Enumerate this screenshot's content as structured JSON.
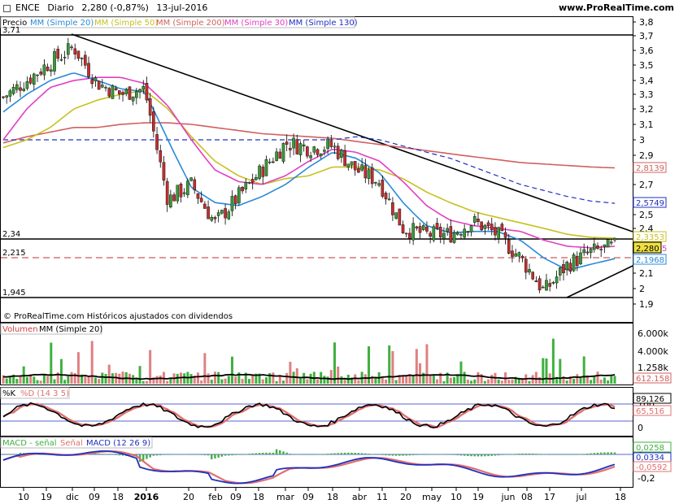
{
  "header": {
    "symbol": "ENCE",
    "period": "Diario",
    "quote": "2,280 (-0,87%)",
    "date": "13-jul-2016",
    "site": "www.ProRealTime.com"
  },
  "footer_note": "© ProRealTime.com  Históricos ajustados con dividendos",
  "colors": {
    "sma20": "#2a8ad8",
    "sma50": "#c8c020",
    "sma200": "#d06060",
    "sma30": "#e040c0",
    "sma130": "#2030c0",
    "up": "#3a9a3a",
    "down": "#c03030",
    "volume": "#e08080",
    "k": "#000000",
    "d": "#e07070",
    "macd": "#2030c0",
    "signal": "#e07070",
    "hist": "#40b040"
  },
  "price_panel": {
    "legend": [
      "Precio",
      "MM (Simple 20)",
      "MM (Simple 50)",
      "MM (Simple 200)",
      "MM (Simple 30)",
      "MM (Simple 130)"
    ],
    "y_ticks": [
      "3,8",
      "3,7",
      "3,6",
      "3,5",
      "3,4",
      "3,3",
      "3,2",
      "3,1",
      "3",
      "2,9",
      "2,7",
      "2,5",
      "2,4",
      "2,1",
      "2",
      "1,9"
    ],
    "levels": [
      "3,71",
      "2,34",
      "2,215",
      "1,945"
    ],
    "tags": {
      "sma200": "2,8139",
      "sma130": "2,5749",
      "sma50": "2,3353",
      "price": "2,280",
      "sma20": "2,1968",
      "sma30": "5"
    }
  },
  "volume_panel": {
    "legend": [
      "Volumen",
      "MM (Simple 20)"
    ],
    "y_ticks": [
      "6.000k",
      "4.000k",
      "1.258k"
    ],
    "last": "612.158"
  },
  "stoch_panel": {
    "legend": [
      "%K",
      "%D (14 3 5)"
    ],
    "y_ticks": [
      "100",
      "0"
    ],
    "k_last": "89,126",
    "d_last": "65,516"
  },
  "macd_panel": {
    "legend": [
      "MACD - señal",
      "Señal",
      "MACD (12 26 9)"
    ],
    "y_ticks": [
      "0",
      "-0,2"
    ],
    "hist_last": "0,0258",
    "macd_last": "0,0334",
    "signal_last": "-0,0592"
  },
  "x_ticks": [
    "10",
    "19",
    "dic",
    "09",
    "18",
    "2016",
    "20",
    "feb",
    "09",
    "18",
    "mar",
    "09",
    "18",
    "abr",
    "11",
    "20",
    "may",
    "10",
    "19",
    "jun",
    "08",
    "17",
    "jul",
    "18"
  ],
  "chart_data": {
    "type": "candlestick",
    "x": [
      "2015-11-05",
      "2015-11-10",
      "2015-11-19",
      "2015-12-01",
      "2015-12-09",
      "2015-12-18",
      "2016-01-01",
      "2016-01-20",
      "2016-02-01",
      "2016-02-09",
      "2016-02-18",
      "2016-03-01",
      "2016-03-09",
      "2016-03-18",
      "2016-04-01",
      "2016-04-11",
      "2016-04-20",
      "2016-05-01",
      "2016-05-10",
      "2016-05-19",
      "2016-06-01",
      "2016-06-08",
      "2016-06-17",
      "2016-06-24",
      "2016-07-01",
      "2016-07-08",
      "2016-07-13"
    ],
    "series": [
      {
        "name": "Precio",
        "values": [
          3.28,
          3.4,
          3.52,
          3.62,
          3.38,
          3.3,
          3.34,
          2.6,
          2.7,
          2.44,
          2.62,
          2.8,
          2.98,
          2.95,
          2.96,
          2.8,
          2.72,
          2.4,
          2.36,
          2.36,
          2.45,
          2.36,
          2.2,
          1.98,
          2.16,
          2.24,
          2.28
        ]
      },
      {
        "name": "MM (Simple 20)",
        "values": [
          3.18,
          3.3,
          3.4,
          3.45,
          3.4,
          3.34,
          3.32,
          3.0,
          2.68,
          2.58,
          2.56,
          2.62,
          2.7,
          2.82,
          2.92,
          2.88,
          2.78,
          2.58,
          2.42,
          2.37,
          2.38,
          2.38,
          2.32,
          2.2,
          2.12,
          2.16,
          2.197
        ]
      },
      {
        "name": "MM (Simple 50)",
        "values": [
          2.95,
          3.0,
          3.08,
          3.2,
          3.26,
          3.3,
          3.33,
          3.2,
          3.02,
          2.86,
          2.76,
          2.7,
          2.74,
          2.76,
          2.82,
          2.82,
          2.8,
          2.74,
          2.65,
          2.58,
          2.52,
          2.48,
          2.44,
          2.4,
          2.36,
          2.34,
          2.335
        ]
      }
    ],
    "ylim": [
      1.9,
      3.8
    ]
  }
}
